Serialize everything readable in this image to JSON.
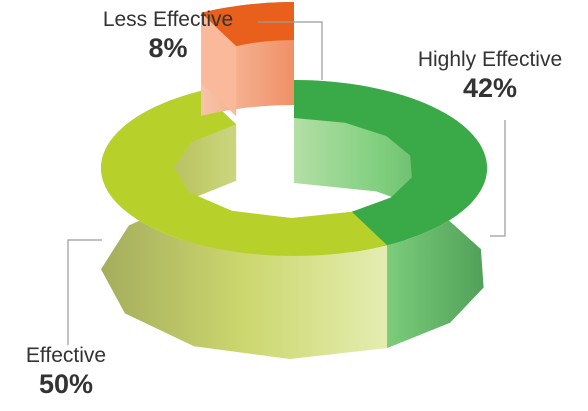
{
  "chart_data": {
    "type": "pie",
    "variant": "3d-donut",
    "title": "",
    "slices": [
      {
        "label": "Highly Effective",
        "value": 42,
        "display": "42%",
        "color": "#3aaa48"
      },
      {
        "label": "Effective",
        "value": 50,
        "display": "50%",
        "color": "#b7d12a"
      },
      {
        "label": "Less Effective",
        "value": 8,
        "display": "8%",
        "color": "#e8601c"
      }
    ],
    "exploded_slice": "Less Effective",
    "legend": "none"
  }
}
